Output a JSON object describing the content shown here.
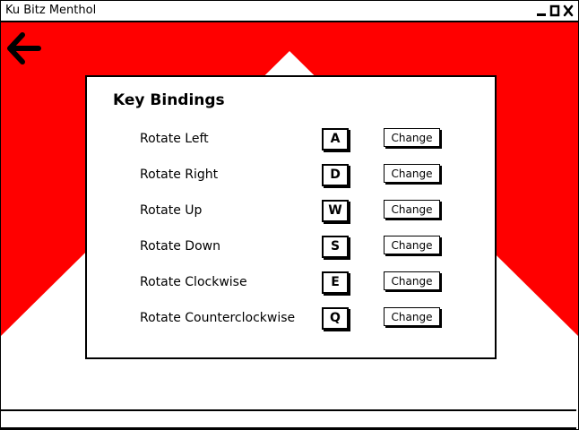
{
  "window": {
    "title": "Ku Bitz Menthol",
    "controls": [
      "minimize-icon",
      "maximize-icon",
      "close-icon"
    ]
  },
  "background": {
    "accent_color": "#ff0000"
  },
  "nav": {
    "back_icon": "arrow-left-icon"
  },
  "panel": {
    "title": "Key Bindings",
    "change_label": "Change",
    "bindings": [
      {
        "action": "Rotate Left",
        "key": "A"
      },
      {
        "action": "Rotate Right",
        "key": "D"
      },
      {
        "action": "Rotate Up",
        "key": "W"
      },
      {
        "action": "Rotate Down",
        "key": "S"
      },
      {
        "action": "Rotate Clockwise",
        "key": "E"
      },
      {
        "action": "Rotate Counterclockwise",
        "key": "Q"
      }
    ]
  }
}
